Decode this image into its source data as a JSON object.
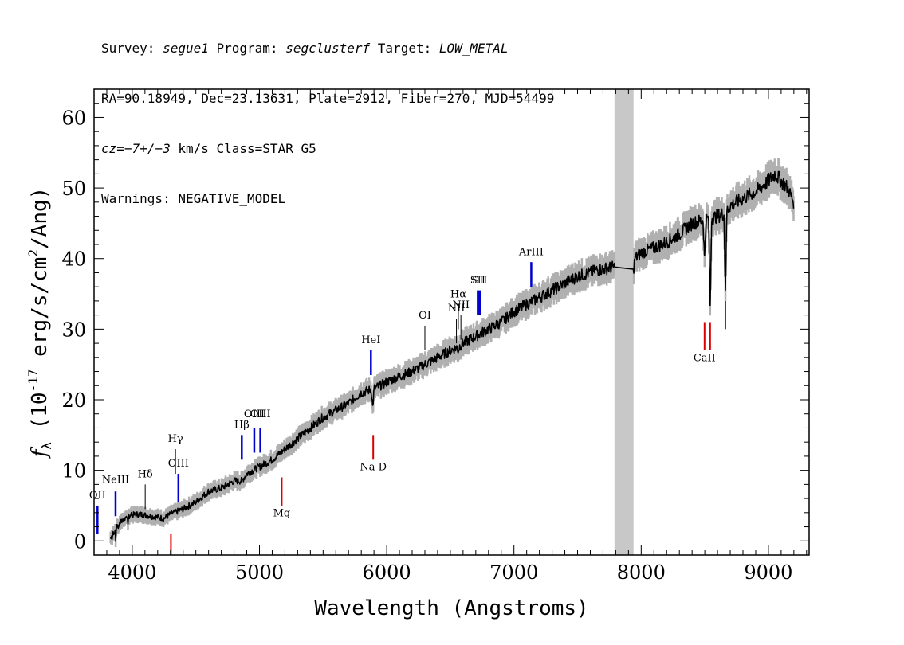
{
  "header": {
    "line1": {
      "survey_key": "Survey: ",
      "survey": "segue1",
      "program_key": " Program: ",
      "program": "segclusterf",
      "target_key": " Target: ",
      "target": "LOW_METAL"
    },
    "line2": "RA=90.18949, Dec=23.13631, Plate=2912, Fiber=270, MJD=54499",
    "line3": {
      "cz": "cz=−7+/−3",
      "rest": " km/s Class=STAR G5"
    },
    "line4": "Warnings: NEGATIVE_MODEL"
  },
  "colors": {
    "emission": "#0000cc",
    "absorption": "#dd0000",
    "spectrum": "#000000",
    "error": "#b0b0b0",
    "masked_band": "#c8c8c8"
  },
  "chart_data": {
    "type": "line",
    "xlabel": "Wavelength (Angstroms)",
    "ylabel": "f_λ (10^-17 erg/s/cm^2/Ang)",
    "xlim": [
      3700,
      9320
    ],
    "ylim": [
      -2,
      64
    ],
    "xticks": [
      4000,
      5000,
      6000,
      7000,
      8000,
      9000
    ],
    "yticks": [
      0,
      10,
      20,
      30,
      40,
      50,
      60
    ],
    "masked_band": [
      7790,
      7940
    ],
    "series": [
      {
        "x": [
          3830,
          3880,
          3950,
          4050,
          4150,
          4250,
          4300,
          4400,
          4500,
          4600,
          4700,
          4800,
          4860,
          4900,
          5000,
          5100,
          5200,
          5300,
          5400,
          5500,
          5600,
          5700,
          5800,
          5890,
          5950,
          6000,
          6100,
          6200,
          6300,
          6400,
          6500,
          6563,
          6600,
          6700,
          6800,
          6900,
          7000,
          7100,
          7200,
          7300,
          7400,
          7500,
          7600,
          7650,
          7700,
          7750,
          7790,
          7940,
          7950,
          8000,
          8100,
          8200,
          8300,
          8400,
          8498,
          8542,
          8600,
          8662,
          8700,
          8800,
          8900,
          9000,
          9050,
          9100,
          9150,
          9200
        ],
        "y": [
          0.5,
          2,
          3.5,
          3.8,
          3.5,
          3.2,
          3.8,
          4.5,
          5.5,
          7,
          7.5,
          8.5,
          8.5,
          9.5,
          10.5,
          11.5,
          13,
          14.5,
          16,
          17.5,
          18.5,
          19.5,
          21,
          21.5,
          22,
          22.5,
          23.3,
          24,
          25,
          26,
          27,
          27.5,
          28,
          29,
          30,
          31,
          32.5,
          33.5,
          34.5,
          35.5,
          36.5,
          37.5,
          38,
          38.4,
          38.5,
          38.7,
          38.8,
          38.5,
          40,
          40.8,
          41.5,
          42.3,
          43.5,
          45,
          45.5,
          45.7,
          46,
          46.5,
          47.5,
          48.5,
          49.5,
          51,
          52,
          51,
          50,
          48
        ]
      }
    ],
    "absorption_features": [
      {
        "x": 5890,
        "y": 19
      },
      {
        "x": 6563,
        "y": 27
      },
      {
        "x": 8498,
        "y": 40
      },
      {
        "x": 8542,
        "y": 33
      },
      {
        "x": 8662,
        "y": 36
      }
    ],
    "emission_lines": [
      {
        "name": "OII",
        "x": 3727,
        "y1": 1,
        "y2": 5,
        "label_y": 6
      },
      {
        "name": "NeIII",
        "x": 3869,
        "y1": 3.5,
        "y2": 7,
        "label_y": 8.2
      },
      {
        "name": "Hδ",
        "x": 4102,
        "y1": 4.5,
        "y2": 8,
        "label_y": 9
      },
      {
        "name": "Hγ",
        "x": 4340,
        "y1": 9.5,
        "y2": 13,
        "label_y": 14
      },
      {
        "name": "OIII",
        "x": 4363,
        "y1": 5.5,
        "y2": 9.5,
        "label_y": 10.5
      },
      {
        "name": "Hβ",
        "x": 4861,
        "y1": 11.5,
        "y2": 15,
        "label_y": 16
      },
      {
        "name": "OIII",
        "x": 4959,
        "y1": 12.5,
        "y2": 16,
        "label_y": 17.5
      },
      {
        "name": "OIII",
        "x": 5007,
        "y1": 12.5,
        "y2": 16,
        "label_y": 17.5
      },
      {
        "name": "HeI",
        "x": 5876,
        "y1": 23.5,
        "y2": 27,
        "label_y": 28
      },
      {
        "name": "OI",
        "x": 6300,
        "y1": 27,
        "y2": 30.5,
        "label_y": 31.5
      },
      {
        "name": "NII",
        "x": 6548,
        "y1": 28,
        "y2": 31.5,
        "label_y": 32.5
      },
      {
        "name": "Hα",
        "x": 6563,
        "y1": 30,
        "y2": 33.5,
        "label_y": 34.5
      },
      {
        "name": "NII",
        "x": 6583,
        "y1": 28.5,
        "y2": 32,
        "label_y": 33
      },
      {
        "name": "SII",
        "x": 6716,
        "y1": 32,
        "y2": 35.5,
        "label_y": 36.5
      },
      {
        "name": "SII",
        "x": 6731,
        "y1": 32,
        "y2": 35.5,
        "label_y": 36.5
      },
      {
        "name": "ArIII",
        "x": 7136,
        "y1": 36,
        "y2": 39.5,
        "label_y": 40.5
      }
    ],
    "absorption_lines": [
      {
        "name": "",
        "x": 4304,
        "y1": -2,
        "y2": 1
      },
      {
        "name": "Mg",
        "x": 5175,
        "y1": 5,
        "y2": 9,
        "label_y": 3.5
      },
      {
        "name": "Na D",
        "x": 5894,
        "y1": 11.5,
        "y2": 15,
        "label_y": 10
      },
      {
        "name": "CaII",
        "x": 8498,
        "y1": 27,
        "y2": 31,
        "label_y": 25.5
      },
      {
        "name": "",
        "x": 8542,
        "y1": 27,
        "y2": 31
      },
      {
        "name": "",
        "x": 8662,
        "y1": 30,
        "y2": 34
      }
    ]
  }
}
